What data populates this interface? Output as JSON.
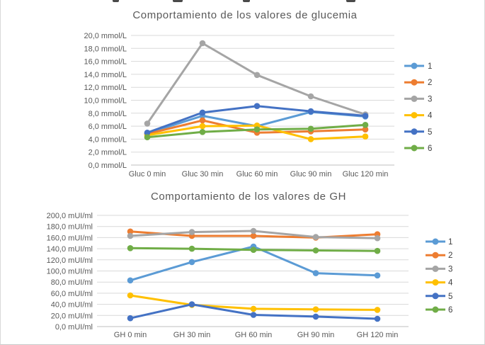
{
  "colors": {
    "title_text": "#595959",
    "axis_text": "#595959",
    "gridline": "#d9d9d9",
    "axis_line": "#bfbfbf",
    "series": [
      "#5B9BD5",
      "#ED7D31",
      "#A5A5A5",
      "#FFC000",
      "#4472C4",
      "#70AD47"
    ]
  },
  "chart_data": [
    {
      "type": "line",
      "title": "Comportamiento de los valores de glucemia",
      "ylabel_unit": "mmol/L",
      "ylim": [
        0,
        20
      ],
      "y_step": 2,
      "grid": true,
      "legend_position": "right",
      "y_tick_labels": [
        "20,0 mmol/L",
        "18,0 mmol/L",
        "16,0 mmol/L",
        "14,0 mmol/L",
        "12,0 mmol/L",
        "10,0 mmol/L",
        "8,0 mmol/L",
        "6,0 mmol/L",
        "4,0 mmol/L",
        "2,0 mmol/L",
        "0,0 mmol/L"
      ],
      "categories": [
        "Gluc 0 min",
        "Gluc 30 min",
        "Gluc 60 min",
        "Gluc 90 min",
        "Gluc 120 min"
      ],
      "series": [
        {
          "name": "1",
          "color": "#5B9BD5",
          "values": [
            4.9,
            7.6,
            6.0,
            8.2,
            7.5
          ]
        },
        {
          "name": "2",
          "color": "#ED7D31",
          "values": [
            4.8,
            6.9,
            5.0,
            5.2,
            5.5
          ]
        },
        {
          "name": "3",
          "color": "#A5A5A5",
          "values": [
            6.4,
            18.8,
            13.9,
            10.6,
            7.8
          ]
        },
        {
          "name": "4",
          "color": "#FFC000",
          "values": [
            4.6,
            6.0,
            6.1,
            4.0,
            4.4
          ]
        },
        {
          "name": "5",
          "color": "#4472C4",
          "values": [
            5.0,
            8.1,
            9.1,
            8.3,
            7.6
          ]
        },
        {
          "name": "6",
          "color": "#70AD47",
          "values": [
            4.3,
            5.1,
            5.5,
            5.6,
            6.2
          ]
        }
      ]
    },
    {
      "type": "line",
      "title": "Comportamiento de los valores de GH",
      "ylabel_unit": "mUI/ml",
      "ylim": [
        0,
        200
      ],
      "y_step": 20,
      "grid": true,
      "legend_position": "right",
      "y_tick_labels": [
        "200,0 mUI/ml",
        "180,0 mUI/ml",
        "160,0 mUI/ml",
        "140,0 mUI/ml",
        "120,0 mUI/ml",
        "100,0 mUI/ml",
        "80,0 mUI/ml",
        "60,0 mUI/ml",
        "40,0 mUI/ml",
        "20,0 mUI/ml",
        "0,0 mUI/ml"
      ],
      "categories": [
        "GH 0 min",
        "GH 30 min",
        "GH 60 min",
        "GH 90 min",
        "GH 120 min"
      ],
      "series": [
        {
          "name": "1",
          "color": "#5B9BD5",
          "values": [
            83,
            116,
            144,
            96,
            92
          ]
        },
        {
          "name": "2",
          "color": "#ED7D31",
          "values": [
            171,
            163,
            163,
            160,
            166
          ]
        },
        {
          "name": "3",
          "color": "#A5A5A5",
          "values": [
            163,
            170,
            172,
            161,
            159
          ]
        },
        {
          "name": "4",
          "color": "#FFC000",
          "values": [
            56,
            39,
            32,
            31,
            30
          ]
        },
        {
          "name": "5",
          "color": "#4472C4",
          "values": [
            15,
            40,
            21,
            18,
            14
          ]
        },
        {
          "name": "6",
          "color": "#70AD47",
          "values": [
            141,
            140,
            138,
            137,
            136
          ]
        }
      ]
    }
  ]
}
